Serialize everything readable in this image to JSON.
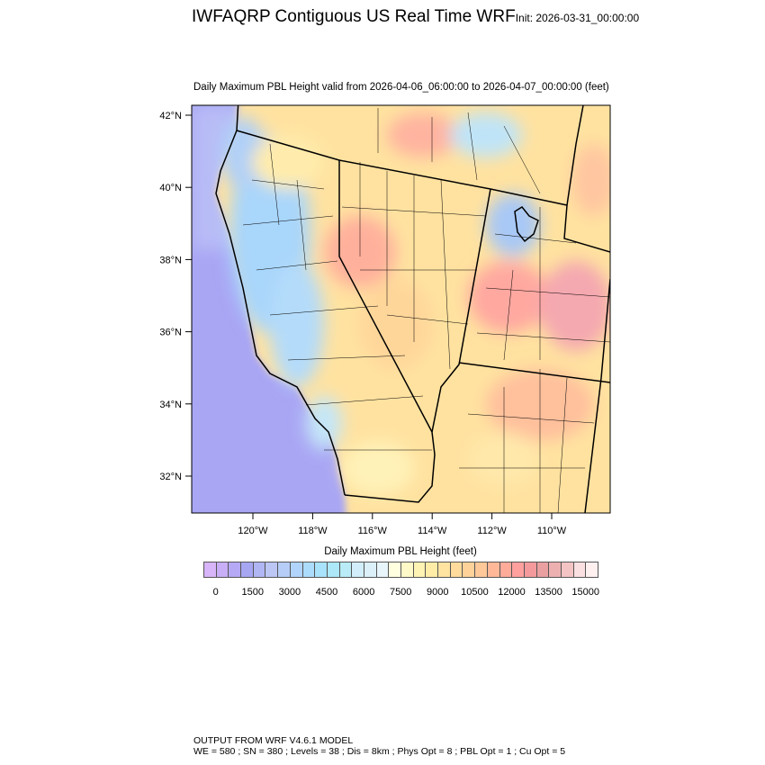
{
  "title": "IWFAQRP Contiguous US Real Time WRF",
  "init_label": "Init: 2026-03-31_00:00:00",
  "subtitle": "Daily Maximum PBL Height valid from 2026-04-06_06:00:00 to 2026-04-07_00:00:00   (feet)",
  "map": {
    "lat_ticks": [
      "42°N",
      "40°N",
      "38°N",
      "36°N",
      "34°N",
      "32°N"
    ],
    "lon_ticks": [
      "120°W",
      "118°W",
      "116°W",
      "114°W",
      "112°W",
      "110°W"
    ],
    "ocean_color": "#a9a6f4"
  },
  "colorbar": {
    "title": "Daily Maximum PBL Height  (feet)",
    "labels": [
      "0",
      "1500",
      "3000",
      "4500",
      "6000",
      "7500",
      "9000",
      "10500",
      "12000",
      "13500",
      "15000"
    ],
    "interval": 500,
    "colors": [
      "#d8b4f8",
      "#c7aef6",
      "#b5a8f5",
      "#a6a6f3",
      "#b0b6f4",
      "#bcc6f5",
      "#b6cdf8",
      "#b0d4fb",
      "#acdcfc",
      "#a8e2fb",
      "#ace8f8",
      "#b9ecf6",
      "#d2eefa",
      "#dcf0fa",
      "#e8f5fb",
      "#ffffe0",
      "#fff9c8",
      "#fff3b4",
      "#ffeca6",
      "#ffe3a0",
      "#ffdb9c",
      "#ffd29a",
      "#ffc898",
      "#ffb898",
      "#ffab9a",
      "#ffa09e",
      "#f59a9c",
      "#eaa0a0",
      "#edb0b0",
      "#f4c4c4",
      "#fae0e0",
      "#fff0f0"
    ]
  },
  "footer": {
    "line1": "OUTPUT FROM WRF V4.6.1 MODEL",
    "line2": "WE = 580 ; SN = 380 ; Levels = 38 ; Dis = 8km ; Phys Opt = 8 ; PBL Opt = 1 ; Cu Opt = 5"
  }
}
